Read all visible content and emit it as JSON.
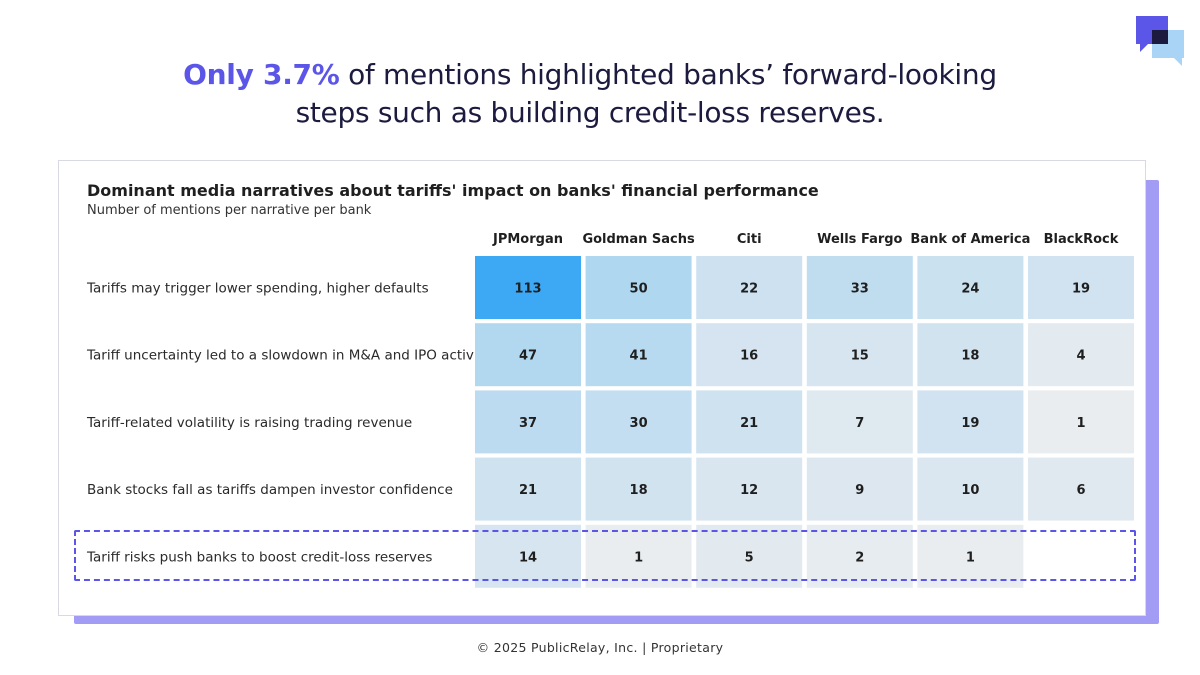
{
  "headline": {
    "accent": "Only 3.7%",
    "rest_line1": " of mentions highlighted banks’ forward-looking",
    "line2": "steps such as building credit-loss reserves."
  },
  "footer": "© 2025 PublicRelay, Inc. | Proprietary",
  "colors": {
    "accent": "#5b56e8",
    "frame": "#a29cf5",
    "cell_low": "#f0f0f0",
    "cell_high": "#3da9f5"
  },
  "chart_data": {
    "type": "heatmap",
    "title": "Dominant media narratives about tariffs' impact on banks' financial performance",
    "subtitle": "Number of mentions per narrative per bank",
    "columns": [
      "JPMorgan",
      "Goldman Sachs",
      "Citi",
      "Wells Fargo",
      "Bank of America",
      "BlackRock"
    ],
    "rows": [
      "Tariffs may trigger lower spending, higher defaults",
      "Tariff uncertainty led to a slowdown in M&A and IPO activity",
      "Tariff-related volatility is raising trading revenue",
      "Bank stocks fall as tariffs dampen investor confidence",
      "Tariff risks push banks to boost credit-loss reserves"
    ],
    "values": [
      [
        113,
        50,
        22,
        33,
        24,
        19
      ],
      [
        47,
        41,
        16,
        15,
        18,
        4
      ],
      [
        37,
        30,
        21,
        7,
        19,
        1
      ],
      [
        21,
        18,
        12,
        9,
        10,
        6
      ],
      [
        14,
        1,
        5,
        2,
        1,
        null
      ]
    ],
    "highlighted_row": "Tariff risks push banks to boost credit-loss reserves"
  }
}
